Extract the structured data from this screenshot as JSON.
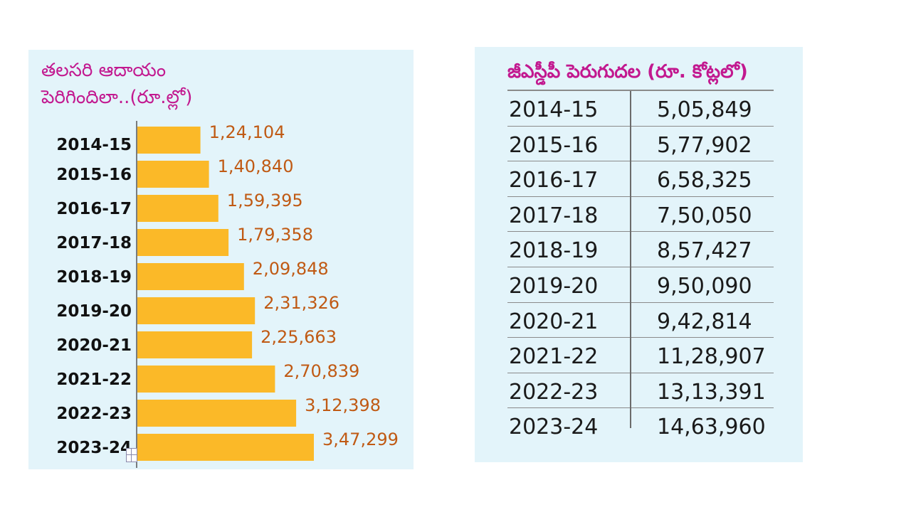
{
  "chart_data": [
    {
      "type": "bar",
      "orientation": "horizontal",
      "title_line1": "తలసరి ఆదాయం",
      "title_line2": "పెరిగిందిలా..(రూ.ల్లో)",
      "categories": [
        "2014-15",
        "2015-16",
        "2016-17",
        "2017-18",
        "2018-19",
        "2019-20",
        "2020-21",
        "2021-22",
        "2022-23",
        "2023-24"
      ],
      "values": [
        124104,
        140840,
        159395,
        179358,
        209848,
        231326,
        225663,
        270839,
        312398,
        347299
      ],
      "value_labels": [
        "1,24,104",
        "1,40,840",
        "1,59,395",
        "1,79,358",
        "2,09,848",
        "2,31,326",
        "2,25,663",
        "2,70,839",
        "3,12,398",
        "3,47,299"
      ],
      "bar_color": "#fbb928",
      "label_color": "#c05a14"
    },
    {
      "type": "table",
      "title": "జీఎస్డీపీ పెరుగుదల (రూ. కోట్లలో)",
      "rows": [
        {
          "year": "2014-15",
          "value": "5,05,849"
        },
        {
          "year": "2015-16",
          "value": "5,77,902"
        },
        {
          "year": "2016-17",
          "value": "6,58,325"
        },
        {
          "year": "2017-18",
          "value": "7,50,050"
        },
        {
          "year": "2018-19",
          "value": "8,57,427"
        },
        {
          "year": "2019-20",
          "value": "9,50,090"
        },
        {
          "year": "2020-21",
          "value": "9,42,814"
        },
        {
          "year": "2021-22",
          "value": "11,28,907"
        },
        {
          "year": "2022-23",
          "value": "13,13,391"
        },
        {
          "year": "2023-24",
          "value": "14,63,960"
        }
      ]
    }
  ],
  "icons": {
    "resize_handle": "table-resize-handle-icon"
  }
}
